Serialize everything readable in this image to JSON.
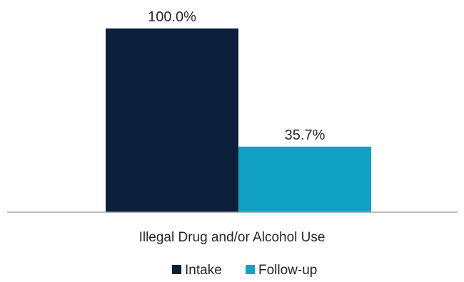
{
  "chart_data": {
    "type": "bar",
    "categories": [
      "Illegal Drug and/or Alcohol Use"
    ],
    "series": [
      {
        "name": "Intake",
        "values": [
          100.0
        ],
        "labels": [
          "100.0%"
        ],
        "color": "#0b1f3a"
      },
      {
        "name": "Follow-up",
        "values": [
          35.7
        ],
        "labels": [
          "35.7%"
        ],
        "color": "#10a2c4"
      }
    ],
    "ylim": [
      0,
      100
    ],
    "grid": false,
    "legend": "bottom-center",
    "axis_color": "#a6a6a6"
  }
}
